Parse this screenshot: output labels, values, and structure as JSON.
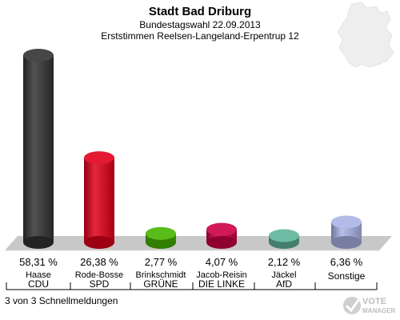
{
  "header": {
    "title": "Stadt Bad Driburg",
    "subtitle": "Bundestagswahl 22.09.2013",
    "subtitle2": "Erststimmen Reelsen-Langeland-Erpentrup 12"
  },
  "footer": {
    "status": "3 von 3 Schnellmeldungen",
    "logo_text": "VOTE MANAGER"
  },
  "colors": {
    "background": "#ffffff",
    "floor": "#c8c8c8",
    "floor_edge": "#e0e0e0"
  },
  "chart_data": {
    "type": "bar",
    "title": "Stadt Bad Driburg",
    "subtitle": "Bundestagswahl 22.09.2013 · Erststimmen Reelsen-Langeland-Erpentrup 12",
    "xlabel": "",
    "ylabel": "",
    "categories": [
      "CDU",
      "SPD",
      "GRÜNE",
      "DIE LINKE",
      "AfD",
      "Sonstige"
    ],
    "candidates": [
      "Haase",
      "Rode-Bosse",
      "Brinkschmidt",
      "Jacob-Reisin",
      "Jäckel",
      ""
    ],
    "values": [
      58.31,
      26.38,
      2.77,
      4.07,
      2.12,
      6.36
    ],
    "value_labels": [
      "58,31 %",
      "26,38 %",
      "2,77 %",
      "4,07 %",
      "2,12 %",
      "6,36 %"
    ],
    "colors": [
      "#333333",
      "#e0001a",
      "#46b400",
      "#cc0044",
      "#5fb49b",
      "#aab4e6"
    ],
    "ylim": [
      0,
      58.31
    ],
    "grid": false,
    "legend": "none"
  }
}
